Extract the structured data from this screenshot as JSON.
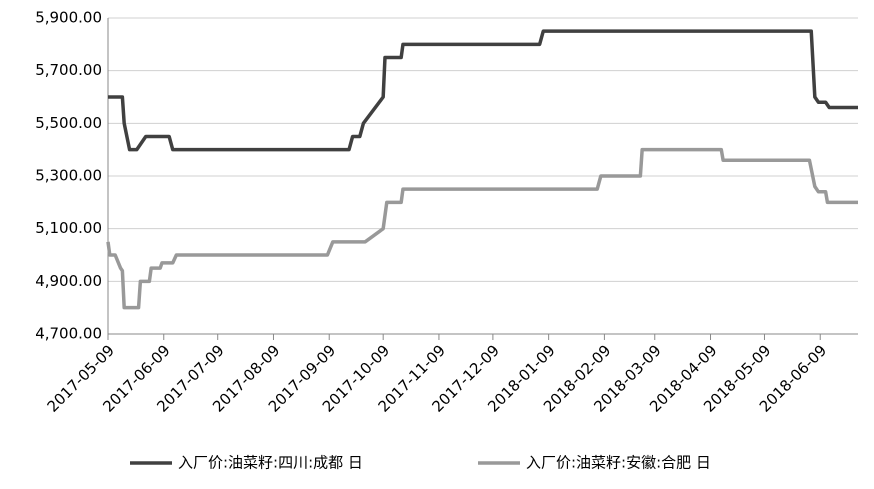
{
  "chart_data": {
    "type": "line",
    "xlim": [
      "2017-05-09",
      "2018-06-30"
    ],
    "xticks": [
      "2017-05-09",
      "2017-06-09",
      "2017-07-09",
      "2017-08-09",
      "2017-09-09",
      "2017-10-09",
      "2017-11-09",
      "2017-12-09",
      "2018-01-09",
      "2018-02-09",
      "2018-03-09",
      "2018-04-09",
      "2018-05-09",
      "2018-06-09"
    ],
    "ylim": [
      4700,
      5900
    ],
    "yticks": [
      {
        "value": 4700,
        "label": "4,700.00"
      },
      {
        "value": 4900,
        "label": "4,900.00"
      },
      {
        "value": 5100,
        "label": "5,100.00"
      },
      {
        "value": 5300,
        "label": "5,300.00"
      },
      {
        "value": 5500,
        "label": "5,500.00"
      },
      {
        "value": 5700,
        "label": "5,700.00"
      },
      {
        "value": 5900,
        "label": "5,900.00"
      }
    ],
    "grid": true,
    "legend": "bottom",
    "series": [
      {
        "name": "入厂价:油菜籽:四川:成都 日",
        "color": "#404040",
        "x": [
          "2017-05-09",
          "2017-05-17",
          "2017-05-18",
          "2017-05-21",
          "2017-05-25",
          "2017-05-30",
          "2017-06-12",
          "2017-06-14",
          "2017-09-20",
          "2017-09-22",
          "2017-09-26",
          "2017-09-28",
          "2017-10-09",
          "2017-10-10",
          "2017-10-19",
          "2017-10-20",
          "2018-01-04",
          "2018-01-06",
          "2018-06-04",
          "2018-06-06",
          "2018-06-08",
          "2018-06-12",
          "2018-06-14",
          "2018-06-30"
        ],
        "values": [
          5600,
          5600,
          5500,
          5400,
          5400,
          5450,
          5450,
          5400,
          5400,
          5450,
          5450,
          5500,
          5600,
          5750,
          5750,
          5800,
          5800,
          5850,
          5850,
          5600,
          5580,
          5580,
          5560,
          5560
        ]
      },
      {
        "name": "入厂价:油菜籽:安徽:合肥 日",
        "color": "#999999",
        "x": [
          "2017-05-09",
          "2017-05-10",
          "2017-05-13",
          "2017-05-16",
          "2017-05-17",
          "2017-05-18",
          "2017-05-26",
          "2017-05-27",
          "2017-06-01",
          "2017-06-02",
          "2017-06-07",
          "2017-06-08",
          "2017-06-14",
          "2017-06-16",
          "2017-09-08",
          "2017-09-11",
          "2017-09-29",
          "2017-10-09",
          "2017-10-11",
          "2017-10-19",
          "2017-10-20",
          "2018-02-05",
          "2018-02-07",
          "2018-03-01",
          "2018-03-02",
          "2018-04-15",
          "2018-04-16",
          "2018-06-03",
          "2018-06-06",
          "2018-06-08",
          "2018-06-12",
          "2018-06-13",
          "2018-06-30"
        ],
        "values": [
          5050,
          5000,
          5000,
          4950,
          4940,
          4800,
          4800,
          4900,
          4900,
          4950,
          4950,
          4970,
          4970,
          5000,
          5000,
          5050,
          5050,
          5100,
          5200,
          5200,
          5250,
          5250,
          5300,
          5300,
          5400,
          5400,
          5360,
          5360,
          5260,
          5240,
          5240,
          5200,
          5200
        ]
      }
    ]
  }
}
